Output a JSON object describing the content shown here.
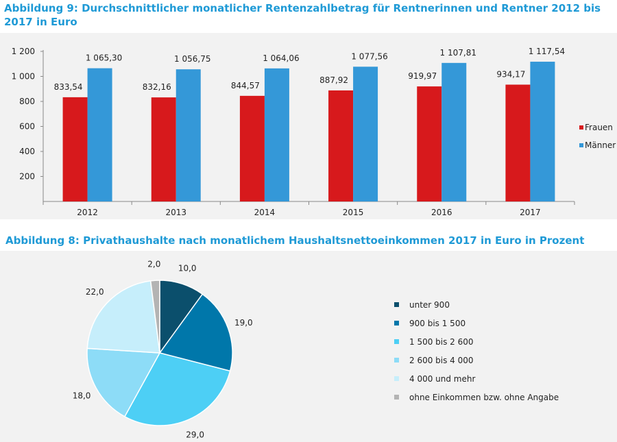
{
  "chart_data": [
    {
      "type": "bar",
      "title": "Abbildung 9: Durchschnittlicher monatlicher Rentenzahlbetrag für Rentnerinnen und Rentner 2012 bis 2017 in Euro",
      "categories": [
        "2012",
        "2013",
        "2014",
        "2015",
        "2016",
        "2017"
      ],
      "series": [
        {
          "name": "Frauen",
          "values": [
            833.54,
            832.16,
            844.57,
            887.92,
            919.97,
            934.17
          ],
          "labels": [
            "833,54",
            "832,16",
            "844,57",
            "887,92",
            "919,97",
            "934,17"
          ],
          "color": "#d7191c"
        },
        {
          "name": "Männer",
          "values": [
            1065.3,
            1056.75,
            1064.06,
            1077.56,
            1107.81,
            1117.54
          ],
          "labels": [
            "1 065,30",
            "1 056,75",
            "1 064,06",
            "1 077,56",
            "1 107,81",
            "1 117,54"
          ],
          "color": "#3498d8"
        }
      ],
      "ylim": [
        0,
        1200
      ],
      "yticks": [
        200,
        400,
        600,
        800,
        1000,
        1200
      ],
      "ytick_labels": [
        "200",
        "400",
        "600",
        "800",
        "1 000",
        "1 200"
      ],
      "xlabel": "",
      "ylabel": "",
      "legend": "right"
    },
    {
      "type": "pie",
      "title": "Abbildung 8: Privathaushalte nach monatlichem Haushaltsnettoeinkommen 2017 in Euro in Prozent",
      "slices": [
        {
          "label": "unter 900",
          "value": 10.0,
          "value_label": "10,0",
          "color": "#0b4f6c"
        },
        {
          "label": "900 bis 1 500",
          "value": 19.0,
          "value_label": "19,0",
          "color": "#0077aa"
        },
        {
          "label": "1 500 bis 2 600",
          "value": 29.0,
          "value_label": "29,0",
          "color": "#4dcff5"
        },
        {
          "label": "2 600 bis 4 000",
          "value": 18.0,
          "value_label": "18,0",
          "color": "#8ddcf7"
        },
        {
          "label": "4 000 und mehr",
          "value": 22.0,
          "value_label": "22,0",
          "color": "#c6eefb"
        },
        {
          "label": "ohne Einkommen bzw. ohne Angabe",
          "value": 2.0,
          "value_label": "2,0",
          "color": "#b4b4b4"
        }
      ],
      "legend": "right"
    }
  ]
}
